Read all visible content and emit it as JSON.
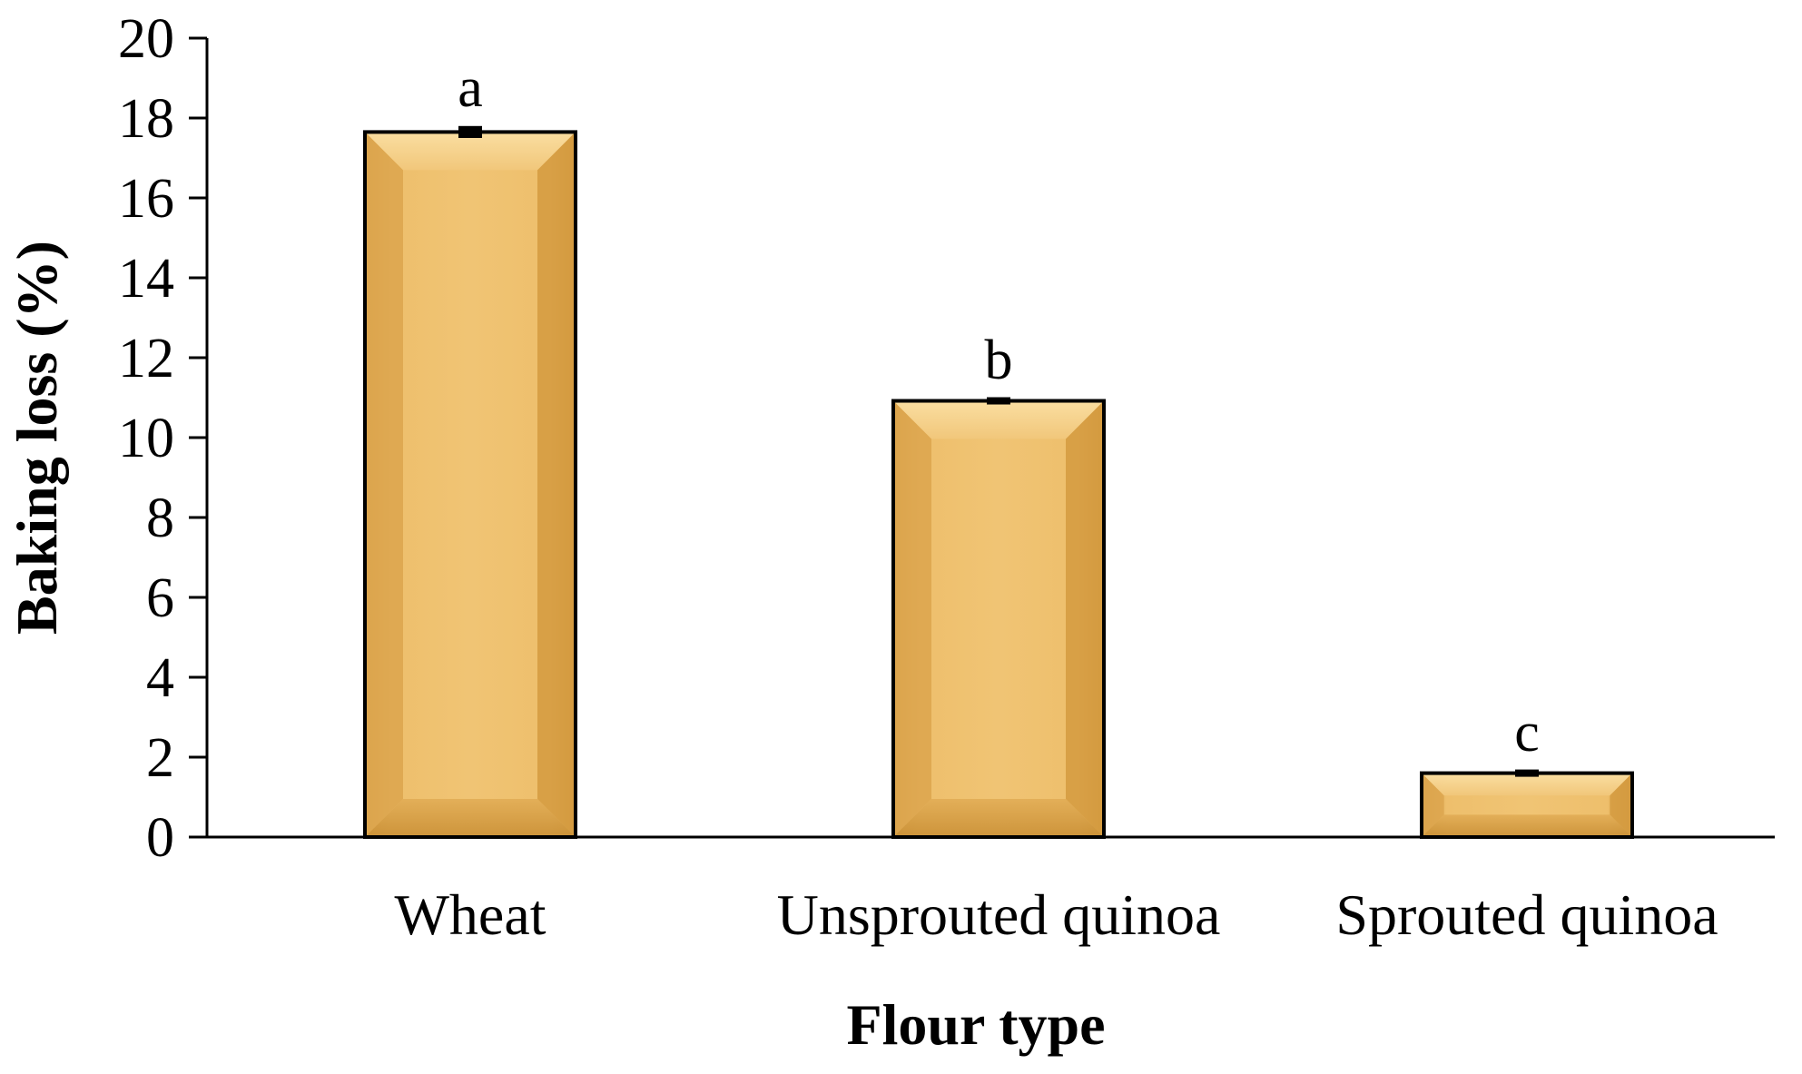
{
  "chart_data": {
    "type": "bar",
    "title": "",
    "xlabel": "Flour type",
    "ylabel": "Baking loss (%)",
    "categories": [
      "Wheat",
      "Unsprouted quinoa",
      "Sprouted quinoa"
    ],
    "values": [
      17.65,
      10.92,
      1.6
    ],
    "error": [
      0.15,
      0.06,
      0.06
    ],
    "significance_labels": [
      "a",
      "b",
      "c"
    ],
    "ylim": [
      0,
      20
    ],
    "yticks": [
      0,
      2,
      4,
      6,
      8,
      10,
      12,
      14,
      16,
      18,
      20
    ],
    "grid": false,
    "legend": "none",
    "colors": {
      "bar_fill_light": "#f4cd7f",
      "bar_fill_mid": "#e8b45e",
      "bar_fill_dark": "#d49a40",
      "bar_edge": "#000000",
      "axis": "#000000"
    }
  }
}
